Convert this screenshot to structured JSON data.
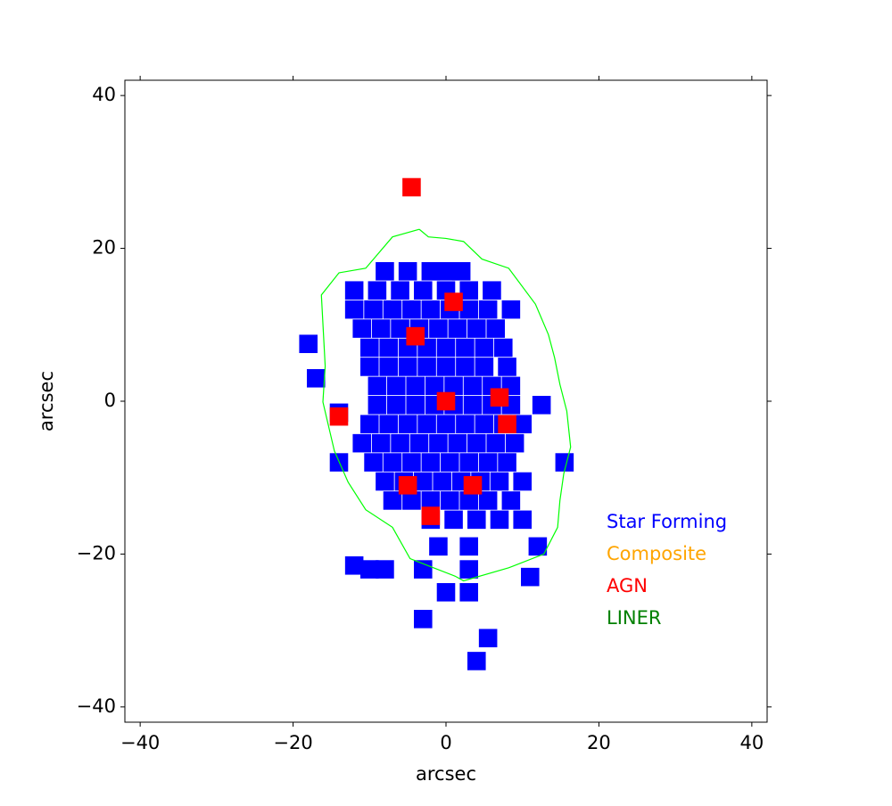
{
  "chart_data": {
    "type": "map",
    "x_label": "arcsec",
    "y_label": "arcsec",
    "xlim": [
      -42,
      42
    ],
    "ylim": [
      -42,
      42
    ],
    "xticks": [
      {
        "value": -40,
        "label": "−40"
      },
      {
        "value": -20,
        "label": "−20"
      },
      0,
      20,
      40
    ],
    "yticks": [
      {
        "value": -40,
        "label": "−40"
      },
      {
        "value": -20,
        "label": "−20"
      },
      0,
      20,
      40
    ],
    "contour": {
      "color": "#00ff00",
      "x": [
        -3.5,
        -2.3,
        0,
        2.3,
        4.7,
        8.2,
        11.7,
        13.4,
        14.2,
        14.9,
        15.8,
        16.3,
        15.4,
        14.9,
        14.6,
        12.8,
        8.2,
        2.3,
        1.2,
        -4.7,
        -7.0,
        -10.5,
        -12.8,
        -14.6,
        -16.1,
        -15.8,
        -16.3,
        -14.0,
        -10.5,
        -7.0,
        -3.5
      ],
      "y": [
        22.5,
        21.5,
        21.3,
        20.9,
        18.6,
        17.4,
        12.7,
        8.7,
        5.7,
        2.2,
        -1.3,
        -6.0,
        -9.5,
        -13.0,
        -16.5,
        -20.0,
        -21.8,
        -23.5,
        -22.9,
        -20.6,
        -16.5,
        -14.2,
        -10.6,
        -6.5,
        -0.1,
        4.6,
        13.9,
        16.8,
        17.4,
        21.5,
        22.5
      ]
    },
    "series": [
      {
        "name": "Star Forming",
        "color": "#0000ff",
        "x": [
          -8,
          -5,
          -2,
          0,
          2,
          -12,
          -9,
          -6,
          -3,
          0,
          3,
          6,
          -12,
          -9.5,
          -7,
          -4.5,
          -2,
          0.5,
          3,
          5.5,
          8.5,
          -11,
          -8.5,
          -6,
          -3.5,
          -1,
          1.5,
          4,
          6.5,
          -10,
          -7.5,
          -5,
          -2.5,
          0,
          2.5,
          5,
          7.5,
          -10,
          -7.5,
          -5,
          -2.5,
          0,
          2.5,
          5,
          8,
          -9,
          -6.5,
          -4,
          -1.5,
          1,
          3.5,
          6,
          8.5,
          -9,
          -6.5,
          -4,
          -1.5,
          1,
          3.5,
          6,
          8.5,
          12.5,
          -10,
          -7.5,
          -5,
          -2.5,
          0,
          2.5,
          5,
          7.5,
          10,
          -11,
          -8.5,
          -6,
          -3.5,
          -1,
          1.5,
          4,
          6.5,
          9,
          -9.5,
          -7,
          -4.5,
          -2,
          0.5,
          3,
          5.5,
          8,
          15.5,
          -8,
          -5.5,
          -3,
          -0.5,
          2,
          4.5,
          7,
          10,
          -7,
          -4.5,
          -2,
          0.5,
          3,
          5.5,
          8.5,
          -2,
          1,
          4,
          7,
          10,
          -1,
          3,
          12,
          -3,
          3,
          -10,
          -8,
          -17,
          -14,
          -14,
          -3,
          5.5,
          4,
          0,
          3,
          11,
          -12,
          -18
        ],
        "y": [
          17,
          17,
          17,
          17,
          17,
          14.5,
          14.5,
          14.5,
          14.5,
          14.5,
          14.5,
          14.5,
          12,
          12,
          12,
          12,
          12,
          12,
          12,
          12,
          12,
          9.5,
          9.5,
          9.5,
          9.5,
          9.5,
          9.5,
          9.5,
          9.5,
          7,
          7,
          7,
          7,
          7,
          7,
          7,
          7,
          4.5,
          4.5,
          4.5,
          4.5,
          4.5,
          4.5,
          4.5,
          4.5,
          2,
          2,
          2,
          2,
          2,
          2,
          2,
          2,
          -0.5,
          -0.5,
          -0.5,
          -0.5,
          -0.5,
          -0.5,
          -0.5,
          -0.5,
          -0.5,
          -3,
          -3,
          -3,
          -3,
          -3,
          -3,
          -3,
          -3,
          -3,
          -5.5,
          -5.5,
          -5.5,
          -5.5,
          -5.5,
          -5.5,
          -5.5,
          -5.5,
          -5.5,
          -8,
          -8,
          -8,
          -8,
          -8,
          -8,
          -8,
          -8,
          -8,
          -10.5,
          -10.5,
          -10.5,
          -10.5,
          -10.5,
          -10.5,
          -10.5,
          -10.5,
          -13,
          -13,
          -13,
          -13,
          -13,
          -13,
          -13,
          -15.5,
          -15.5,
          -15.5,
          -15.5,
          -15.5,
          -19,
          -19,
          -19,
          -22,
          -22,
          -22,
          -22,
          3,
          -1.5,
          -8,
          -28.5,
          -31,
          -34,
          -25,
          -25,
          -23,
          -21.5,
          7.5
        ]
      },
      {
        "name": "Composite",
        "color": "#ffa500",
        "x": [],
        "y": []
      },
      {
        "name": "AGN",
        "color": "#ff0000",
        "x": [
          0,
          -4,
          7,
          -5,
          3.5,
          8,
          -14,
          -4.5,
          1,
          -2
        ],
        "y": [
          0,
          8.5,
          0.5,
          -11,
          -11,
          -3,
          -2,
          28,
          13,
          -15
        ]
      },
      {
        "name": "LINER",
        "color": "#008000",
        "x": [],
        "y": []
      }
    ]
  }
}
